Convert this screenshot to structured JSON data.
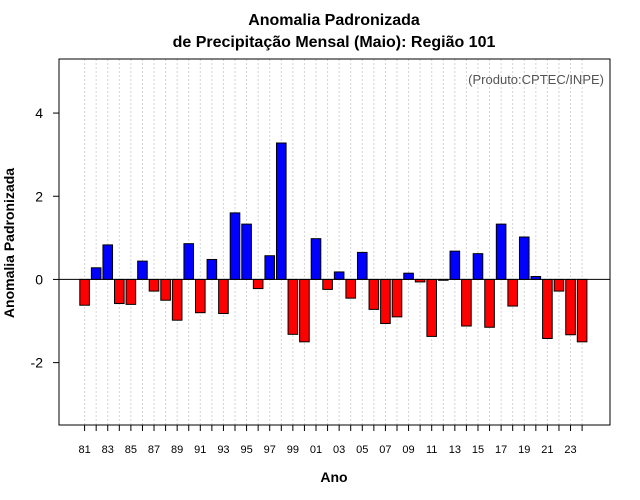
{
  "chart_data": {
    "type": "bar",
    "title": "Anomalia Padronizada",
    "subtitle": "de Precipitação Mensal (Maio): Região 101",
    "xlabel": "Ano",
    "ylabel": "Anomalia Padronizada",
    "annotation": "(Produto:CPTEC/INPE)",
    "ylim": [
      -3.5,
      5.3
    ],
    "yticks": [
      -2,
      0,
      2,
      4
    ],
    "ytick_labels": [
      "-2",
      "0",
      "2",
      "4"
    ],
    "grid": "vertical-dotted",
    "colors": {
      "positive": "#0000ff",
      "negative": "#ff0000",
      "grid": "#d3d3d3"
    },
    "categories": [
      "81",
      "82",
      "83",
      "84",
      "85",
      "86",
      "87",
      "88",
      "89",
      "90",
      "91",
      "92",
      "93",
      "94",
      "95",
      "96",
      "97",
      "98",
      "99",
      "00",
      "01",
      "02",
      "03",
      "04",
      "05",
      "06",
      "07",
      "08",
      "09",
      "10",
      "11",
      "12",
      "13",
      "14",
      "15",
      "16",
      "17",
      "18",
      "19",
      "20",
      "21",
      "22",
      "23",
      "24"
    ],
    "xtick_labels": [
      "81",
      "83",
      "85",
      "87",
      "89",
      "91",
      "93",
      "95",
      "97",
      "99",
      "01",
      "03",
      "05",
      "07",
      "09",
      "11",
      "13",
      "15",
      "17",
      "19",
      "21",
      "23"
    ],
    "values": [
      -0.62,
      0.28,
      0.83,
      -0.58,
      -0.6,
      0.44,
      -0.28,
      -0.5,
      -0.98,
      0.86,
      -0.8,
      0.48,
      -0.82,
      1.6,
      1.33,
      -0.22,
      0.57,
      3.28,
      -1.32,
      -1.5,
      0.98,
      -0.24,
      0.18,
      -0.45,
      0.65,
      -0.72,
      -1.06,
      -0.9,
      0.15,
      -0.06,
      -1.37,
      -0.02,
      0.68,
      -1.12,
      0.62,
      -1.15,
      1.33,
      -0.64,
      1.02,
      0.07,
      -1.42,
      -0.28,
      -1.33,
      -1.5
    ]
  }
}
